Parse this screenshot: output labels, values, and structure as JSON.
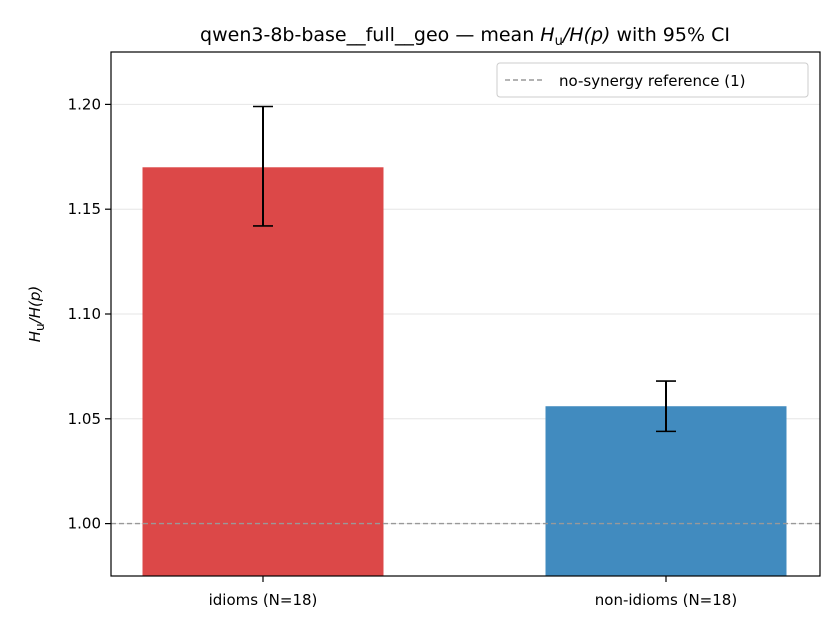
{
  "chart_data": {
    "type": "bar",
    "title_prefix": "qwen3-8b-base__full__geo — mean ",
    "title_math_base1": "H",
    "title_math_sub": "u",
    "title_math_rest": "/H(p)",
    "title_suffix": " with 95% CI",
    "ylabel_base": "H",
    "ylabel_sub": "u",
    "ylabel_rest": "/H(p)",
    "categories": [
      "idioms (N=18)",
      "non-idioms (N=18)"
    ],
    "values": [
      1.17,
      1.056
    ],
    "ci_low": [
      1.142,
      1.044
    ],
    "ci_high": [
      1.199,
      1.068
    ],
    "colors": [
      "#dc4848",
      "#418bbf"
    ],
    "ylim": [
      0.975,
      1.225
    ],
    "yticks": [
      "1.00",
      "1.05",
      "1.10",
      "1.15",
      "1.20"
    ],
    "ytick_values": [
      1.0,
      1.05,
      1.1,
      1.15,
      1.2
    ],
    "grid": true,
    "reference_line": {
      "value": 1.0,
      "label": "no-synergy reference (1)",
      "color": "#999999"
    },
    "legend_position": "top-right"
  }
}
